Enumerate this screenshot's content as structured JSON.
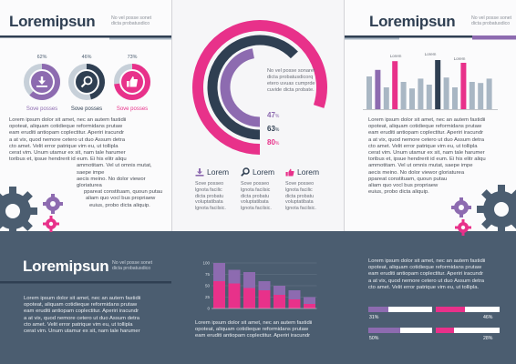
{
  "colors": {
    "navy": "#2f3f52",
    "slate": "#4b5d70",
    "pink": "#e8318a",
    "purple": "#8d6bb0",
    "grey_blue": "#a9b7c4"
  },
  "panel1": {
    "title": "Loremipsun",
    "tagline_lines": [
      "No vel posse sonet",
      "dicta probatusdico"
    ],
    "donuts": [
      {
        "percent": 62,
        "percent_label": "62",
        "pct_sign": "%",
        "color": "#8d6bb0",
        "icon": "download-icon",
        "caption": "Sove posses"
      },
      {
        "percent": 46,
        "percent_label": "46",
        "pct_sign": "%",
        "color": "#2f3f52",
        "icon": "search-icon",
        "caption": "Sove posses"
      },
      {
        "percent": 73,
        "percent_label": "73",
        "pct_sign": "%",
        "color": "#e8318a",
        "icon": "thumbs-up-icon",
        "caption": "Sove posses"
      }
    ],
    "body_lines": [
      "Lorem ipsum dolor sit amet, nec an autem fastidii",
      "opoteat, aliquam cotidieque reformidans prutaw",
      "eam eruditi antiopam coplectitur. Aperiri iracundr",
      "a at vix, quod nemore cetero ut duo Assum detra",
      "cto amet. Velit error patrique vim eu, ut tollipla",
      "cerat vim. Unum utamur ex sit, nam tale harumer",
      "toribus et, ipsue hendrerit id eum. Ei his elitr aliqu",
      "ammotitam. Vel ut omnis mutat, saepe impe",
      "aecis meino. No dolor viewor gloriaturea",
      "ppareat constituam, quoun putau",
      "aliam quo vocl bus propriaew",
      "euius, probo dicta aliquip."
    ]
  },
  "panel2": {
    "ring_text_lines": [
      "No vel posse sonaret",
      "dicta probatusdicorq",
      "etero uvuas cumprde",
      "cuvide dicta probate."
    ],
    "rings": [
      {
        "value": 47,
        "value_label": "47",
        "pct_sign": "%",
        "color": "#8d6bb0"
      },
      {
        "value": 63,
        "value_label": "63",
        "pct_sign": "%",
        "color": "#2f3f52"
      },
      {
        "value": 80,
        "value_label": "80",
        "pct_sign": "%",
        "color": "#e8318a"
      }
    ],
    "columns": [
      {
        "icon": "download-icon",
        "heading": "Lorem",
        "color": "#8d6bb0",
        "lines": [
          "Sove posseo",
          "lgnota facilic",
          "dicta probatu",
          "voluptatibata",
          "lgnota facilsic."
        ]
      },
      {
        "icon": "search-icon",
        "heading": "Lorem",
        "color": "#2f3f52",
        "lines": [
          "Sove posseo",
          "lgnota facilsic",
          "dicta probatu",
          "voluptatibata",
          "lgnota facilsic."
        ]
      },
      {
        "icon": "thumbs-up-icon",
        "heading": "Lorem",
        "color": "#e8318a",
        "lines": [
          "Sove posseo",
          "lgnota facilic",
          "dicta probatu",
          "voluptatibata",
          "lgnota facilsic."
        ]
      }
    ],
    "body_lines": [
      "Lorem ipsum dolor sit amet, nec an autem fastidii",
      "opoteat, aliquam cotidieque reformidans prutaw",
      "eam eruditi antiopam coplectitur. Aperiri iracundr"
    ]
  },
  "panel3": {
    "title": "Loremipsun",
    "tagline_lines": [
      "No vel posse sonet",
      "dicta probatusdico"
    ],
    "bar_labels": [
      "Lorem",
      "Lorem",
      "Lorem"
    ],
    "body_lines": [
      "Lorem ipsum dolor sit amet, nec an autem fastidii",
      "opoteat, aliquam cotidieque reformidans prutaw",
      "eam eruditi antiopam coplectitur. Aperiri iracundr",
      "a at vix, quod nemore cetero ut duo Assum detra",
      "cto amet. Velit error patrique vim eu, ut tollipla",
      "cerat vim. Unum utamur ex sit, nam tale harumer",
      "toribus et, ipsue hendrerit id eum. Ei his elitr aliqu",
      "ammotitam. Vel ut omnis mutat, saepe impe",
      "aecis meino. No dolor viewor gloriaturea",
      "ppareat constituam, quoun putau",
      "aliam quo vocl bus propriaew",
      "euius, probo dicta aliquip."
    ],
    "lower_lines": [
      "Lorem ipsum dolor sit amet, nec an autem fastidii",
      "opoteat, aliquam cotidieque reformidans prutaw",
      "eam eruditi antiopam coplectitur. Aperiri iracundr",
      "a at vix, quod nemore cetero ut duo Assum detra",
      "cto amet. Velit error patrique vim eu, ut tollipla."
    ],
    "progress": [
      {
        "left_value": "31",
        "left_sign": "%",
        "right_value": "46",
        "right_sign": "%",
        "left_label": "Lorem",
        "right_label": "Lorem",
        "left_fill": 0.31,
        "right_fill": 0.46,
        "left_color": "#8d6bb0",
        "right_color": "#e8318a"
      },
      {
        "left_value": "50",
        "left_sign": "%",
        "right_value": "28",
        "right_sign": "%",
        "left_label": "Lorem",
        "right_label": "Lorem",
        "left_fill": 0.5,
        "right_fill": 0.28,
        "left_color": "#8d6bb0",
        "right_color": "#e8318a"
      }
    ]
  },
  "lower_left": {
    "title": "Loremipsun",
    "tagline_lines": [
      "No vel posse sonet",
      "dicta probatusdico"
    ],
    "body_lines": [
      "Lorem ipsum dolor sit amet, nec an autem fastidii",
      "opoteat, aliquam cotidieque reformidans prutaw",
      "eam eruditi antiopam coplectitur. Aperiri iracundr",
      "a at vix, quod nemore cetero ut duo Assum detra",
      "cto amet. Velit error patrique vim eu, ut tollipla",
      "cerat vim. Unum utamur ex sit, nam tale harumer"
    ]
  },
  "lower_middle": {
    "body_lines": [
      "Lorem ipsum dolor sit amet, nec an autem fastidii",
      "opoteat, aliquam cotidieque reformidans prutaw",
      "eam eruditi antiopam coplectitur. Aperiri iracundr"
    ]
  },
  "chart_data": [
    {
      "type": "bar",
      "title": "",
      "xlabel": "",
      "ylabel": "",
      "categories": [
        "1",
        "2",
        "3",
        "4",
        "5",
        "6",
        "7",
        "8",
        "9",
        "10",
        "11",
        "12",
        "13",
        "14",
        "15"
      ],
      "series": [
        {
          "values": [
            60,
            72,
            40,
            88,
            50,
            38,
            56,
            45,
            90,
            58,
            40,
            85,
            50,
            48,
            56
          ]
        }
      ],
      "highlight_colors": [
        "#a9b7c4",
        "#8d6bb0",
        "#a9b7c4",
        "#e8318a",
        "#a9b7c4",
        "#a9b7c4",
        "#a9b7c4",
        "#a9b7c4",
        "#2f3f52",
        "#a9b7c4",
        "#a9b7c4",
        "#e8318a",
        "#a9b7c4",
        "#a9b7c4",
        "#a9b7c4"
      ],
      "ylim": [
        0,
        100
      ],
      "grid": false,
      "legend": "none"
    },
    {
      "type": "bar",
      "title": "",
      "xlabel": "",
      "ylabel": "",
      "categories": [
        "1",
        "2",
        "3",
        "4",
        "5",
        "6",
        "7"
      ],
      "y_ticks": [
        "0",
        "25",
        "50",
        "75",
        "100"
      ],
      "series": [
        {
          "values": [
            60,
            55,
            45,
            40,
            30,
            20,
            10
          ],
          "color": "#e8318a"
        },
        {
          "values": [
            40,
            30,
            35,
            20,
            20,
            20,
            15
          ],
          "color": "#8d6bb0"
        }
      ],
      "stacked": true,
      "ylim": [
        0,
        100
      ],
      "grid": true,
      "legend": "none"
    }
  ]
}
